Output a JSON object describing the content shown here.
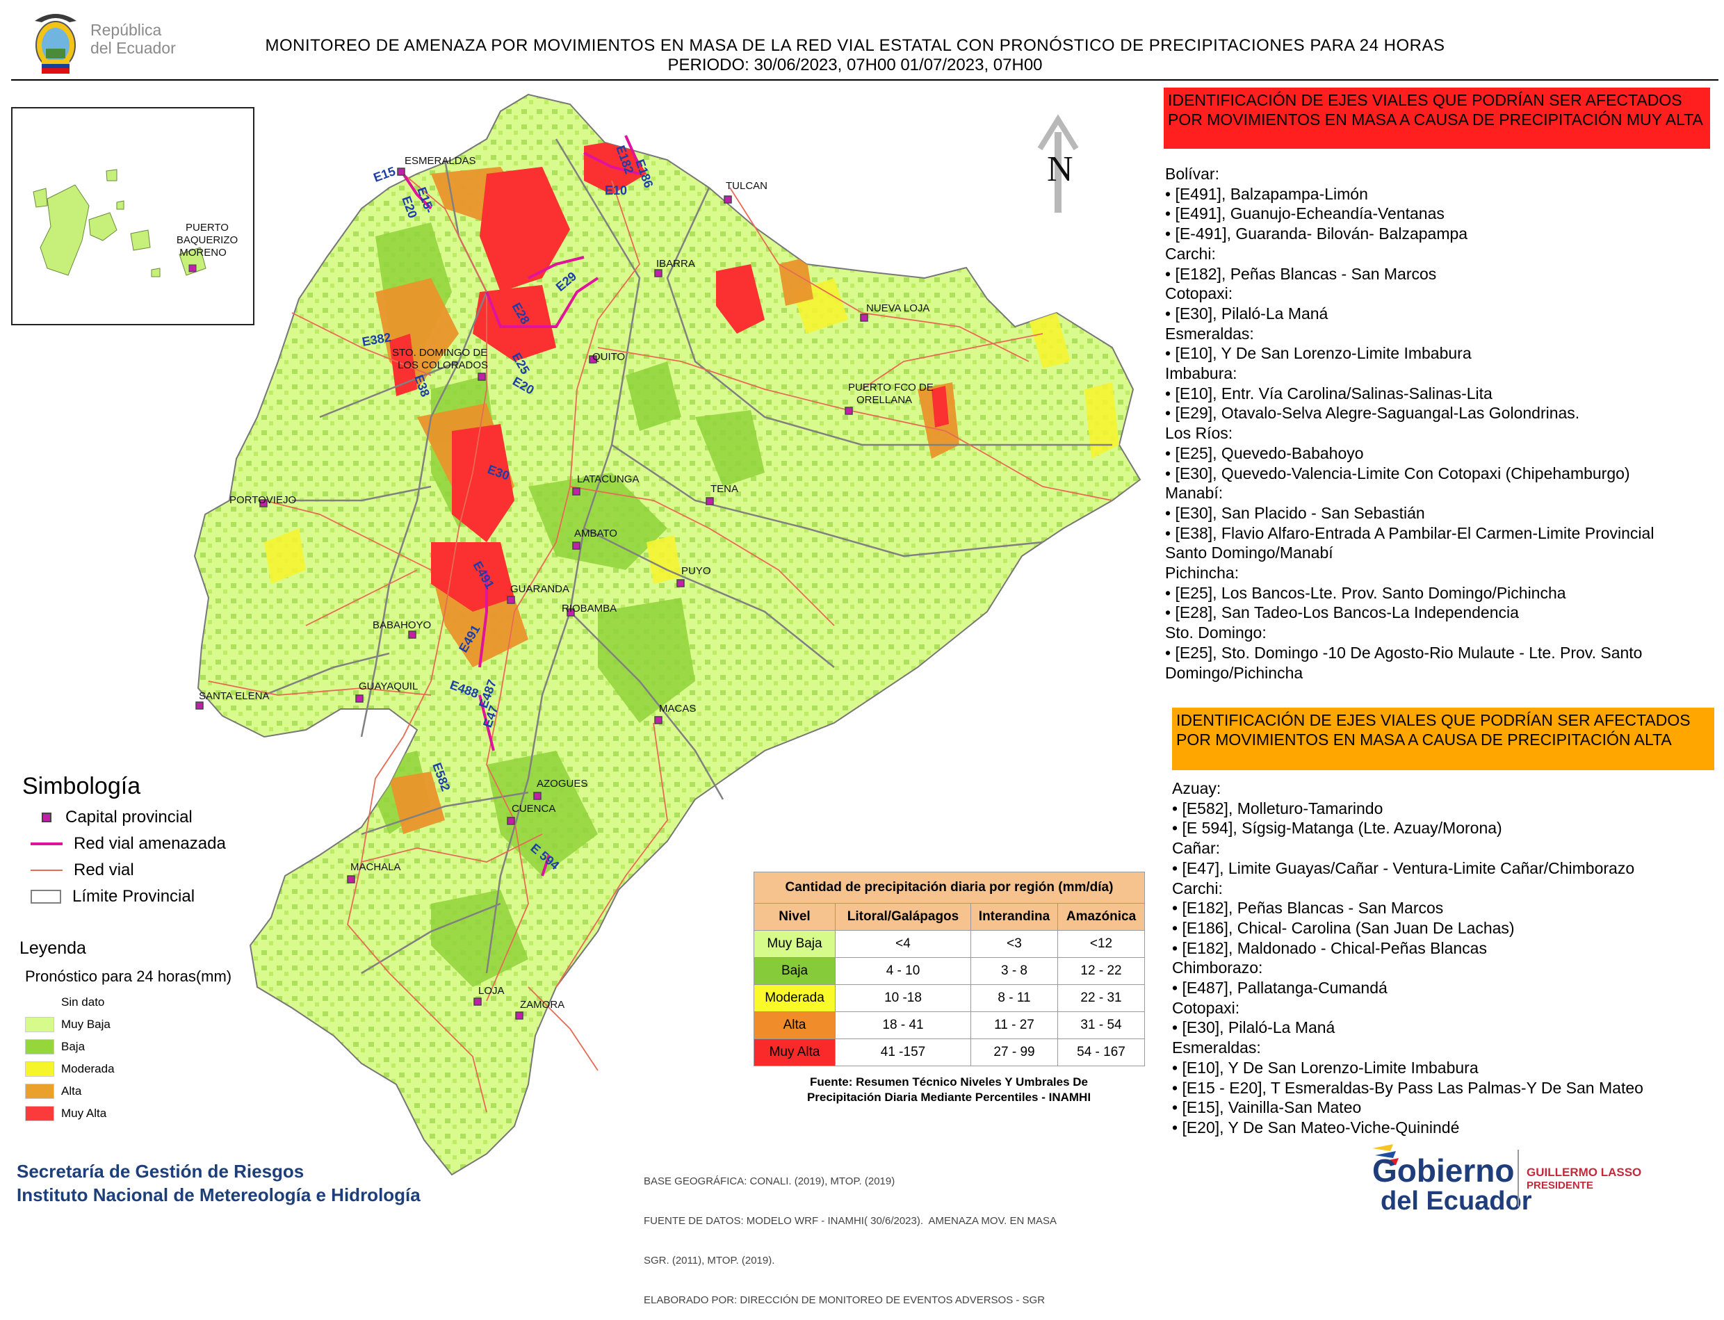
{
  "header": {
    "logo_text_line1": "República",
    "logo_text_line2": "del Ecuador",
    "title": "MONITOREO DE AMENAZA POR MOVIMIENTOS EN MASA DE LA RED VIAL  ESTATAL  CON PRONÓSTICO  DE  PRECIPITACIONES PARA 24 HORAS",
    "period": "PERIODO: 30/06/2023, 07H00 01/07/2023, 07H00"
  },
  "map": {
    "north_label": "N",
    "inset_label_line1": "PUERTO",
    "inset_label_line2": "BAQUERIZO",
    "inset_label_line3": "MORENO",
    "cities": [
      "ESMERALDAS",
      "TULCAN",
      "IBARRA",
      "NUEVA LOJA",
      "STO. DOMINGO DE",
      "LOS COLORADOS",
      "QUITO",
      "PUERTO FCO DE",
      "ORELLANA",
      "PORTOVIEJO",
      "LATACUNGA",
      "TENA",
      "AMBATO",
      "PUYO",
      "GUARANDA",
      "RIOBAMBA",
      "BABAHOYO",
      "SANTA ELENA",
      "GUAYAQUIL",
      "MACAS",
      "AZOGUES",
      "CUENCA",
      "MACHALA",
      "LOJA",
      "ZAMORA"
    ],
    "road_labels": [
      "E15",
      "E20",
      "E15-",
      "E182",
      "E186",
      "E10",
      "E29",
      "E28",
      "E382",
      "E25",
      "E38",
      "E20",
      "E30",
      "E491",
      "E491",
      "E488",
      "E487",
      "E47",
      "E582",
      "E 594"
    ]
  },
  "simbologia": {
    "title": "Simbología",
    "items": [
      {
        "label": "Capital provincial",
        "icon": "capital-marker-icon"
      },
      {
        "label": "Red vial amenazada",
        "color": "#e0149a"
      },
      {
        "label": "Red vial",
        "color": "#e06060"
      },
      {
        "label": "Límite Provincial",
        "color": "#808080"
      }
    ]
  },
  "leyenda": {
    "title": "Leyenda",
    "subtitle": "Pronóstico para 24 horas(mm)",
    "items": [
      {
        "label": "Sin dato",
        "color": "#ffffff"
      },
      {
        "label": "Muy Baja",
        "color": "#d6fb8b"
      },
      {
        "label": "Baja",
        "color": "#95d63a"
      },
      {
        "label": "Moderada",
        "color": "#f5f52a"
      },
      {
        "label": "Alta",
        "color": "#e9a12b"
      },
      {
        "label": "Muy Alta",
        "color": "#fb3b3b"
      }
    ]
  },
  "precip_table": {
    "caption": "Cantidad de precipitación diaria por región (mm/día)",
    "headers": [
      "Nivel",
      "Litoral/Galápagos",
      "Interandina",
      "Amazónica"
    ],
    "rows": [
      {
        "nivel": "Muy Baja",
        "color": "#d6fb8b",
        "litoral": "<4",
        "interandina": "<3",
        "amazonica": "<12"
      },
      {
        "nivel": "Baja",
        "color": "#86cc3a",
        "litoral": "4 - 10",
        "interandina": "3 - 8",
        "amazonica": "12 - 22"
      },
      {
        "nivel": "Moderada",
        "color": "#fafa2a",
        "litoral": "10 -18",
        "interandina": "8 - 11",
        "amazonica": "22 - 31"
      },
      {
        "nivel": "Alta",
        "color": "#f08c2a",
        "litoral": "18 - 41",
        "interandina": "11 - 27",
        "amazonica": "31 - 54"
      },
      {
        "nivel": "Muy Alta",
        "color": "#fb2a2a",
        "litoral": "41 -157",
        "interandina": "27 - 99",
        "amazonica": "54 - 167"
      }
    ],
    "source_line1": "Fuente: Resumen Técnico Niveles Y Umbrales De",
    "source_line2": "Precipitación Diaria Mediante Percentiles - INAMHI"
  },
  "panel_muy_alta": {
    "title": "IDENTIFICACIÓN DE EJES VIALES QUE PODRÍAN SER AFECTADOS POR MOVIMIENTOS EN MASA A CAUSA DE PRECIPITACIÓN MUY ALTA",
    "lines": [
      "Bolívar:",
      "• [E491], Balzapampa-Limón",
      "• [E491], Guanujo-Echeandía-Ventanas",
      "• [E-491], Guaranda- Bilován- Balzapampa",
      "Carchi:",
      "• [E182], Peñas Blancas - San Marcos",
      "Cotopaxi:",
      "• [E30], Pilaló-La Maná",
      "Esmeraldas:",
      "• [E10], Y De San Lorenzo-Limite Imbabura",
      "Imbabura:",
      "• [E10], Entr. Vía Carolina/Salinas-Salinas-Lita",
      "• [E29], Otavalo-Selva Alegre-Saguangal-Las Golondrinas.",
      "Los Ríos:",
      "• [E25], Quevedo-Babahoyo",
      "• [E30], Quevedo-Valencia-Limite Con Cotopaxi (Chipehamburgo)",
      "Manabí:",
      "• [E30], San Placido - San Sebastián",
      "• [E38], Flavio Alfaro-Entrada A Pambilar-El Carmen-Limite Provincial",
      "Santo Domingo/Manabí",
      "Pichincha:",
      "• [E25], Los Bancos-Lte. Prov. Santo Domingo/Pichincha",
      "• [E28], San Tadeo-Los Bancos-La Independencia",
      "Sto. Domingo:",
      "• [E25], Sto. Domingo -10 De Agosto-Rio Mulaute - Lte. Prov. Santo",
      "Domingo/Pichincha"
    ]
  },
  "panel_alta": {
    "title": "IDENTIFICACIÓN DE EJES VIALES QUE PODRÍAN SER AFECTADOS POR MOVIMIENTOS EN MASA A CAUSA DE PRECIPITACIÓN  ALTA",
    "lines": [
      "Azuay:",
      "• [E582], Molleturo-Tamarindo",
      "• [E 594], Sígsig-Matanga (Lte. Azuay/Morona)",
      "Cañar:",
      "• [E47], Limite Guayas/Cañar - Ventura-Limite Cañar/Chimborazo",
      "Carchi:",
      "• [E182], Peñas Blancas - San Marcos",
      "• [E186], Chical- Carolina (San Juan De Lachas)",
      "• [E182], Maldonado - Chical-Peñas Blancas",
      "Chimborazo:",
      "• [E487], Pallatanga-Cumandá",
      "Cotopaxi:",
      "• [E30], Pilaló-La Maná",
      "Esmeraldas:",
      "• [E10], Y De San Lorenzo-Limite Imbabura",
      "• [E15 - E20], T Esmeraldas-By Pass Las Palmas-Y De San Mateo",
      "• [E15], Vainilla-San Mateo",
      "• [E20], Y De San Mateo-Viche-Quinindé"
    ]
  },
  "footer": {
    "org_line1": "Secretaría de Gestión de Riesgos",
    "org_line2": "Instituto Nacional de Metereología e Hidrología",
    "credits_line1": "BASE GEOGRÁFICA: CONALI. (2019), MTOP. (2019)",
    "credits_line2": "FUENTE DE DATOS: MODELO WRF - INAMHI( 30/6/2023).  AMENAZA MOV. EN MASA",
    "credits_line3": "SGR. (2011), MTOP. (2019).",
    "credits_line4": "ELABORADO POR: DIRECCIÓN DE MONITOREO DE EVENTOS ADVERSOS - SGR",
    "gov_line1": "Gobierno",
    "gov_line2": "del Ecuador",
    "president_line1": "GUILLERMO LASSO",
    "president_line2": "PRESIDENTE"
  }
}
